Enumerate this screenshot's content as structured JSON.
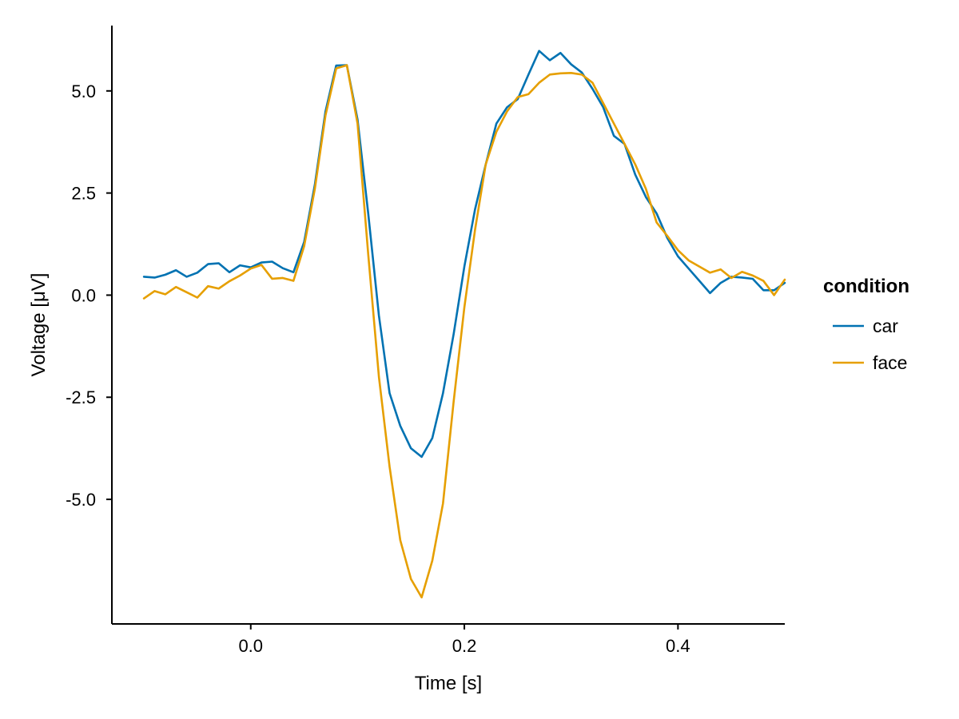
{
  "chart_data": {
    "type": "line",
    "xlabel": "Time [s]",
    "ylabel": "Voltage [μV]",
    "xlim": [
      -0.13,
      0.5
    ],
    "ylim": [
      -8.05,
      6.6
    ],
    "xticks": [
      0.0,
      0.2,
      0.4
    ],
    "xtick_labels": [
      "0.0",
      "0.2",
      "0.4"
    ],
    "yticks": [
      5.0,
      2.5,
      0.0,
      -2.5,
      -5.0
    ],
    "ytick_labels": [
      "5.0",
      "2.5",
      "0.0",
      "-2.5",
      "-5.0"
    ],
    "grid": false,
    "legend": {
      "title": "condition",
      "placement": "right",
      "entries": [
        "car",
        "face"
      ]
    },
    "x": [
      -0.1,
      -0.09,
      -0.08,
      -0.07,
      -0.06,
      -0.05,
      -0.04,
      -0.03,
      -0.02,
      -0.01,
      0.0,
      0.01,
      0.02,
      0.03,
      0.04,
      0.05,
      0.06,
      0.07,
      0.08,
      0.09,
      0.1,
      0.11,
      0.12,
      0.13,
      0.14,
      0.15,
      0.16,
      0.17,
      0.18,
      0.19,
      0.2,
      0.21,
      0.22,
      0.23,
      0.24,
      0.25,
      0.26,
      0.27,
      0.28,
      0.29,
      0.3,
      0.31,
      0.32,
      0.33,
      0.34,
      0.35,
      0.36,
      0.37,
      0.38,
      0.39,
      0.4,
      0.41,
      0.42,
      0.43,
      0.44,
      0.45,
      0.46,
      0.47,
      0.48,
      0.49,
      0.5
    ],
    "series": [
      {
        "name": "car",
        "color": "#0072B2",
        "values": [
          0.45,
          0.43,
          0.5,
          0.61,
          0.45,
          0.55,
          0.76,
          0.78,
          0.56,
          0.73,
          0.68,
          0.8,
          0.82,
          0.66,
          0.56,
          1.3,
          2.7,
          4.5,
          5.62,
          5.63,
          4.3,
          2.0,
          -0.5,
          -2.4,
          -3.2,
          -3.75,
          -3.96,
          -3.5,
          -2.4,
          -0.95,
          0.7,
          2.1,
          3.2,
          4.2,
          4.6,
          4.8,
          5.4,
          5.98,
          5.75,
          5.93,
          5.65,
          5.45,
          5.05,
          4.6,
          3.9,
          3.7,
          2.95,
          2.4,
          2.0,
          1.4,
          0.95,
          0.65,
          0.35,
          0.05,
          0.3,
          0.45,
          0.43,
          0.4,
          0.12,
          0.12,
          0.3
        ]
      },
      {
        "name": "face",
        "color": "#E69F00",
        "values": [
          -0.08,
          0.1,
          0.02,
          0.2,
          0.07,
          -0.06,
          0.22,
          0.16,
          0.34,
          0.48,
          0.65,
          0.74,
          0.4,
          0.42,
          0.35,
          1.2,
          2.6,
          4.4,
          5.55,
          5.63,
          4.2,
          1.0,
          -2.0,
          -4.2,
          -6.0,
          -6.95,
          -7.4,
          -6.5,
          -5.1,
          -2.6,
          -0.3,
          1.6,
          3.2,
          4.0,
          4.5,
          4.85,
          4.92,
          5.2,
          5.4,
          5.43,
          5.44,
          5.4,
          5.2,
          4.7,
          4.2,
          3.7,
          3.2,
          2.6,
          1.78,
          1.45,
          1.1,
          0.85,
          0.7,
          0.55,
          0.63,
          0.42,
          0.57,
          0.48,
          0.35,
          0.0,
          0.38
        ]
      }
    ]
  }
}
